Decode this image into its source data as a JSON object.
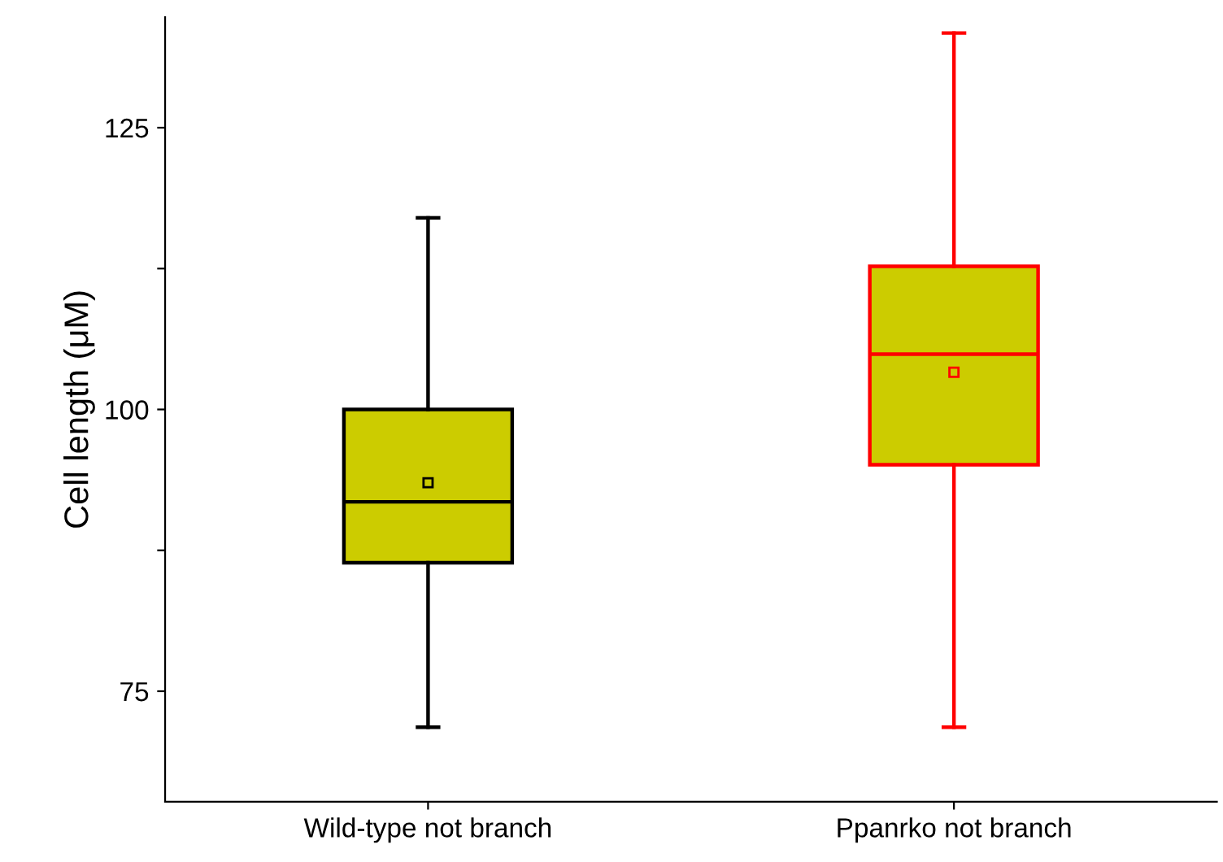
{
  "chart_data": {
    "type": "box",
    "ylabel": "Cell length (μM)",
    "categories": [
      "Wild-type not branch",
      "Ppanrko not branch"
    ],
    "colors": [
      "#cccc00",
      "#cccc00"
    ],
    "series": [
      {
        "color": "#000000",
        "boxes": [
          {
            "low": 71.8,
            "q1": 86.4,
            "median": 91.8,
            "q3": 100,
            "high": 117,
            "mean": 93.5
          },
          null
        ]
      },
      {
        "color": "#ff0000",
        "boxes": [
          null,
          {
            "low": 71.8,
            "q1": 95.1,
            "median": 104.9,
            "q3": 112.7,
            "high": 133.4,
            "mean": 103.3
          }
        ]
      }
    ],
    "ylim": [
      65.2,
      134.8
    ],
    "yticks": [
      75,
      {
        "value": 87.5,
        "label": null
      },
      100,
      {
        "value": 112.5,
        "label": null
      },
      125
    ],
    "grid": false,
    "legend": false
  }
}
